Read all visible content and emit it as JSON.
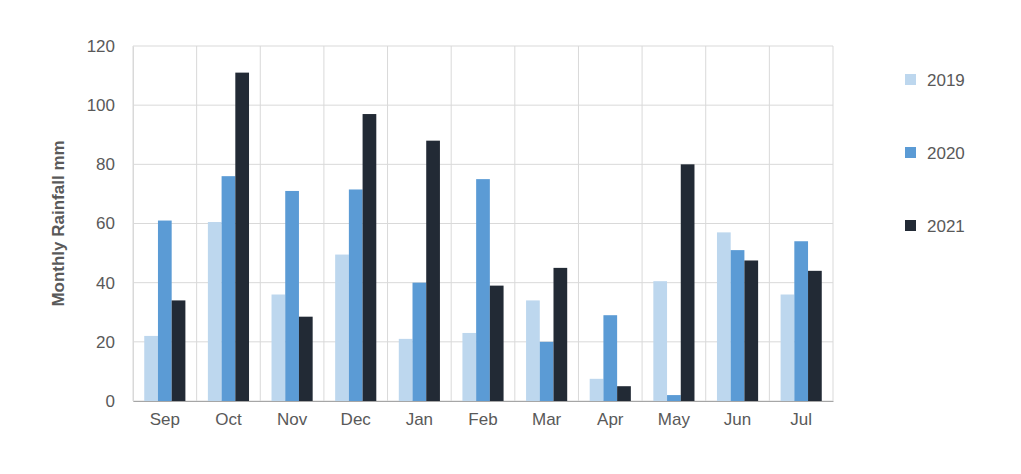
{
  "chart_data": {
    "type": "bar",
    "y_label": "Monthly Rainfall mm",
    "categories": [
      "Sep",
      "Oct",
      "Nov",
      "Dec",
      "Jan",
      "Feb",
      "Mar",
      "Apr",
      "May",
      "Jun",
      "Jul"
    ],
    "series": [
      {
        "name": "2019",
        "color": "#bdd7ee",
        "values": [
          22,
          60.5,
          36,
          49.5,
          21,
          23,
          34,
          7.5,
          40.5,
          57,
          36
        ]
      },
      {
        "name": "2020",
        "color": "#5b9bd5",
        "values": [
          61,
          76,
          71,
          71.5,
          40,
          75,
          20,
          29,
          2,
          51,
          54
        ]
      },
      {
        "name": "2021",
        "color": "#222a35",
        "values": [
          34,
          111,
          28.5,
          97,
          88,
          39,
          45,
          5,
          80,
          47.5,
          44
        ]
      }
    ],
    "ylim": [
      0,
      120
    ],
    "yticks": [
      0,
      20,
      40,
      60,
      80,
      100,
      120
    ],
    "grid": true,
    "legend": "right"
  }
}
